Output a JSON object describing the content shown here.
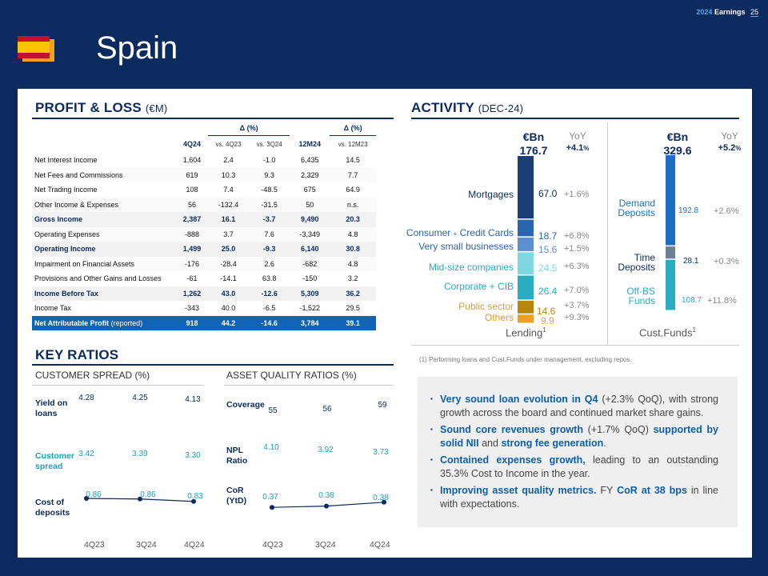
{
  "header": {
    "prefix": "2024",
    "label": "Earnings",
    "page": "25"
  },
  "title": "Spain",
  "pl": {
    "heading": "PROFIT & LOSS",
    "unit": "(€M)",
    "delta1": "Δ (%)",
    "delta2": "Δ (%)",
    "cols": [
      "4Q24",
      "vs. 4Q23",
      "vs. 3Q24",
      "12M24",
      "vs. 12M23"
    ],
    "rows": [
      {
        "label": "Net Interest Income",
        "v": [
          "1,604",
          "2.4",
          "-1.0",
          "6,435",
          "14.5"
        ]
      },
      {
        "label": "Net Fees and Commissions",
        "v": [
          "619",
          "10.3",
          "9.3",
          "2,329",
          "7.7"
        ]
      },
      {
        "label": "Net Trading Income",
        "v": [
          "108",
          "7.4",
          "-48.5",
          "675",
          "64.9"
        ]
      },
      {
        "label": "Other Income & Expenses",
        "v": [
          "56",
          "-132.4",
          "-31.5",
          "50",
          "n.s."
        ]
      },
      {
        "label": "Gross Income",
        "v": [
          "2,387",
          "16.1",
          "-3.7",
          "9,490",
          "20.3"
        ]
      },
      {
        "label": "Operating Expenses",
        "v": [
          "-888",
          "3.7",
          "7.6",
          "-3,349",
          "4.8"
        ]
      },
      {
        "label": "Operating Income",
        "v": [
          "1,499",
          "25.0",
          "-9.3",
          "6,140",
          "30.8"
        ]
      },
      {
        "label": "Impairment on Financial Assets",
        "v": [
          "-176",
          "-28.4",
          "2.6",
          "-682",
          "4.8"
        ]
      },
      {
        "label": "Provisions and Other Gains and Losses",
        "v": [
          "-61",
          "-14.1",
          "63.8",
          "-150",
          "3.2"
        ]
      },
      {
        "label": "Income Before Tax",
        "v": [
          "1,262",
          "43.0",
          "-12.6",
          "5,309",
          "36.2"
        ]
      },
      {
        "label": "Income Tax",
        "v": [
          "-343",
          "40.0",
          "-6.5",
          "-1,522",
          "29.5"
        ]
      },
      {
        "label": "Net Attributable Profit",
        "rep": " (reported)",
        "v": [
          "918",
          "44.2",
          "-14.6",
          "3,784",
          "39.1"
        ]
      }
    ]
  },
  "activity": {
    "heading": "ACTIVITY",
    "period": "(DEC-24)",
    "unit": "€Bn",
    "yoy": "YoY",
    "lending": {
      "total": "176.7",
      "total_yoy": "+4.1",
      "pct": "%",
      "footer": "Lending",
      "items": [
        {
          "label": "Mortgages",
          "value": "67.0",
          "yoy": "+1.6%",
          "color": "#1c3e77"
        },
        {
          "label_a": "Consumer",
          "plus": "+",
          "label_b": "Credit Cards",
          "value": "18.7",
          "yoy": "+6.8%",
          "color": "#2a65b0"
        },
        {
          "label": "Very small businesses",
          "value": "15.6",
          "yoy": "+1.5%",
          "color": "#5b8fd0"
        },
        {
          "label": "Mid-size companies",
          "value": "24.5",
          "yoy": "+6.3%",
          "color": "#7fd8e1"
        },
        {
          "label": "Corporate + CIB",
          "value": "26.4",
          "yoy": "+7.0%",
          "color": "#28aec0"
        },
        {
          "label": "Public sector",
          "value": "14.6",
          "yoy": "+3.7%",
          "color": "#b8860b"
        },
        {
          "label": "Others",
          "value": "9.9",
          "yoy": "+9.3%",
          "color": "#f0a020"
        }
      ]
    },
    "funds": {
      "total": "329.6",
      "total_yoy": "+5.2",
      "pct": "%",
      "footer": "Cust.Funds",
      "items": [
        {
          "label": "Demand Deposits",
          "value": "192.8",
          "yoy": "+2.6%",
          "color": "#1c6fc0"
        },
        {
          "label": "Time Deposits",
          "value": "28.1",
          "yoy": "+0.3%",
          "color": "#6b7f95"
        },
        {
          "label": "Off-BS Funds",
          "value": "108.7",
          "yoy": "+11.8%",
          "color": "#28aec0"
        }
      ]
    },
    "sup": "1",
    "footnote": "(1) Performing loans and Cust.Funds under management, excluding repos."
  },
  "ratios": {
    "heading": "KEY RATIOS",
    "cs_title": "CUSTOMER SPREAD (%)",
    "aq_title": "ASSET QUALITY RATIOS (%)",
    "quarters": [
      "4Q23",
      "3Q24",
      "4Q24"
    ],
    "yield": {
      "l1": "Yield on",
      "l2": "loans",
      "vals": [
        "4.28",
        "4.25",
        "4.13"
      ]
    },
    "spread": {
      "l1": "Customer",
      "l2": "spread",
      "vals": [
        "3.42",
        "3.39",
        "3.30"
      ]
    },
    "cod": {
      "l1": "Cost of",
      "l2": "deposits",
      "vals": [
        "0.86",
        "0.86",
        "0.83"
      ]
    },
    "coverage": {
      "l1": "Coverage",
      "vals": [
        "55",
        "56",
        "59"
      ]
    },
    "npl": {
      "l1": "NPL",
      "l2": "Ratio",
      "vals": [
        "4.10",
        "3.92",
        "3.73"
      ]
    },
    "cor": {
      "l1": "CoR",
      "l2": "(YtD)",
      "vals": [
        "0.37",
        "0.38",
        "0.38"
      ]
    }
  },
  "bullets": {
    "b1": {
      "bold": "Very sound loan evolution in Q4",
      "rest": " (+2.3% QoQ), with strong growth across the board  and continued market share gains."
    },
    "b2": {
      "bold1": "Sound core revenues growth",
      "mid": " (+1.7% QoQ) ",
      "bold2": "supported by solid NII",
      "and": " and ",
      "bold3": "strong fee generation",
      "end": "."
    },
    "b3": {
      "bold": "Contained expenses growth,",
      "rest": " leading to an outstanding 35.3% Cost to Income in the year."
    },
    "b4": {
      "bold1": "Improving asset quality metrics.",
      "mid": " FY ",
      "bold2": "CoR at 38 bps",
      "rest": " in line with expectations."
    }
  }
}
